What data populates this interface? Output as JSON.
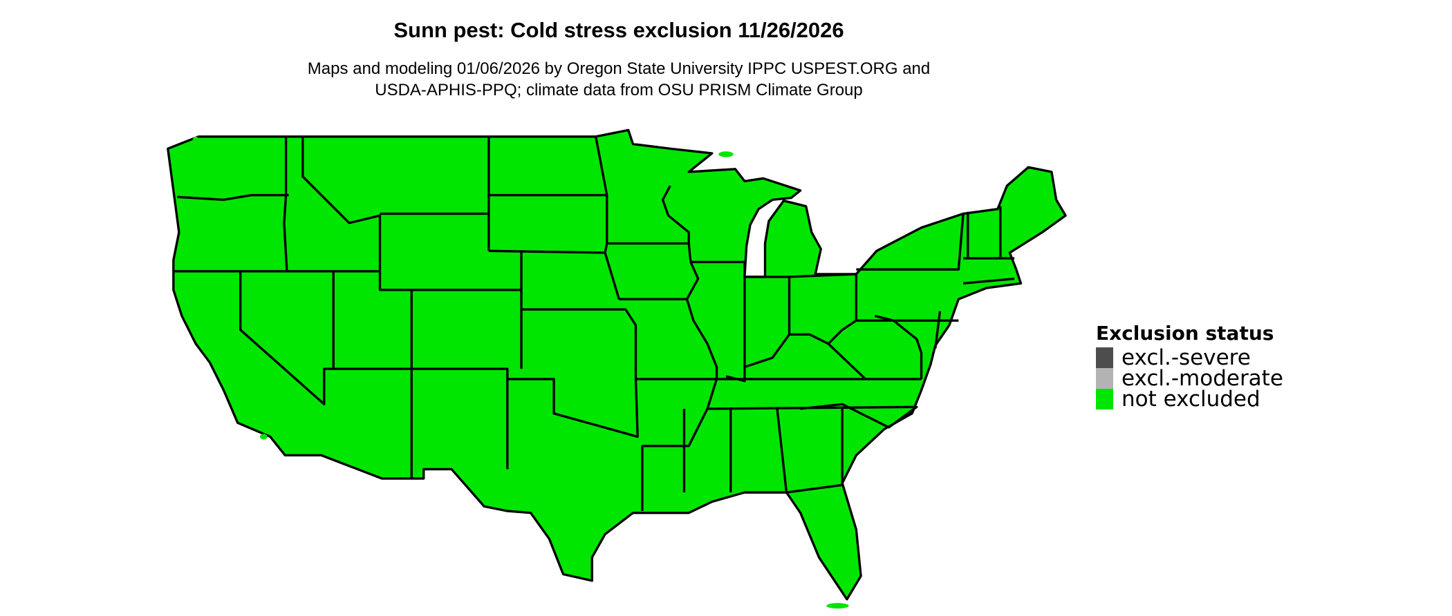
{
  "title": "Sunn pest: Cold stress exclusion 11/26/2026",
  "subtitle": [
    "Maps and modeling 01/06/2026 by Oregon State University IPPC USPEST.ORG and",
    "USDA-APHIS-PPQ; climate data from OSU PRISM Climate Group"
  ],
  "map": {
    "region": "contiguous United States",
    "status_shown": "not excluded",
    "fill_color": "#00e600",
    "border_color": "#000000"
  },
  "legend": {
    "title": "Exclusion status",
    "items": [
      {
        "label": "excl.-severe",
        "color": "#4d4d4d"
      },
      {
        "label": "excl.-moderate",
        "color": "#b3b3b3"
      },
      {
        "label": "not excluded",
        "color": "#00e600"
      }
    ]
  }
}
